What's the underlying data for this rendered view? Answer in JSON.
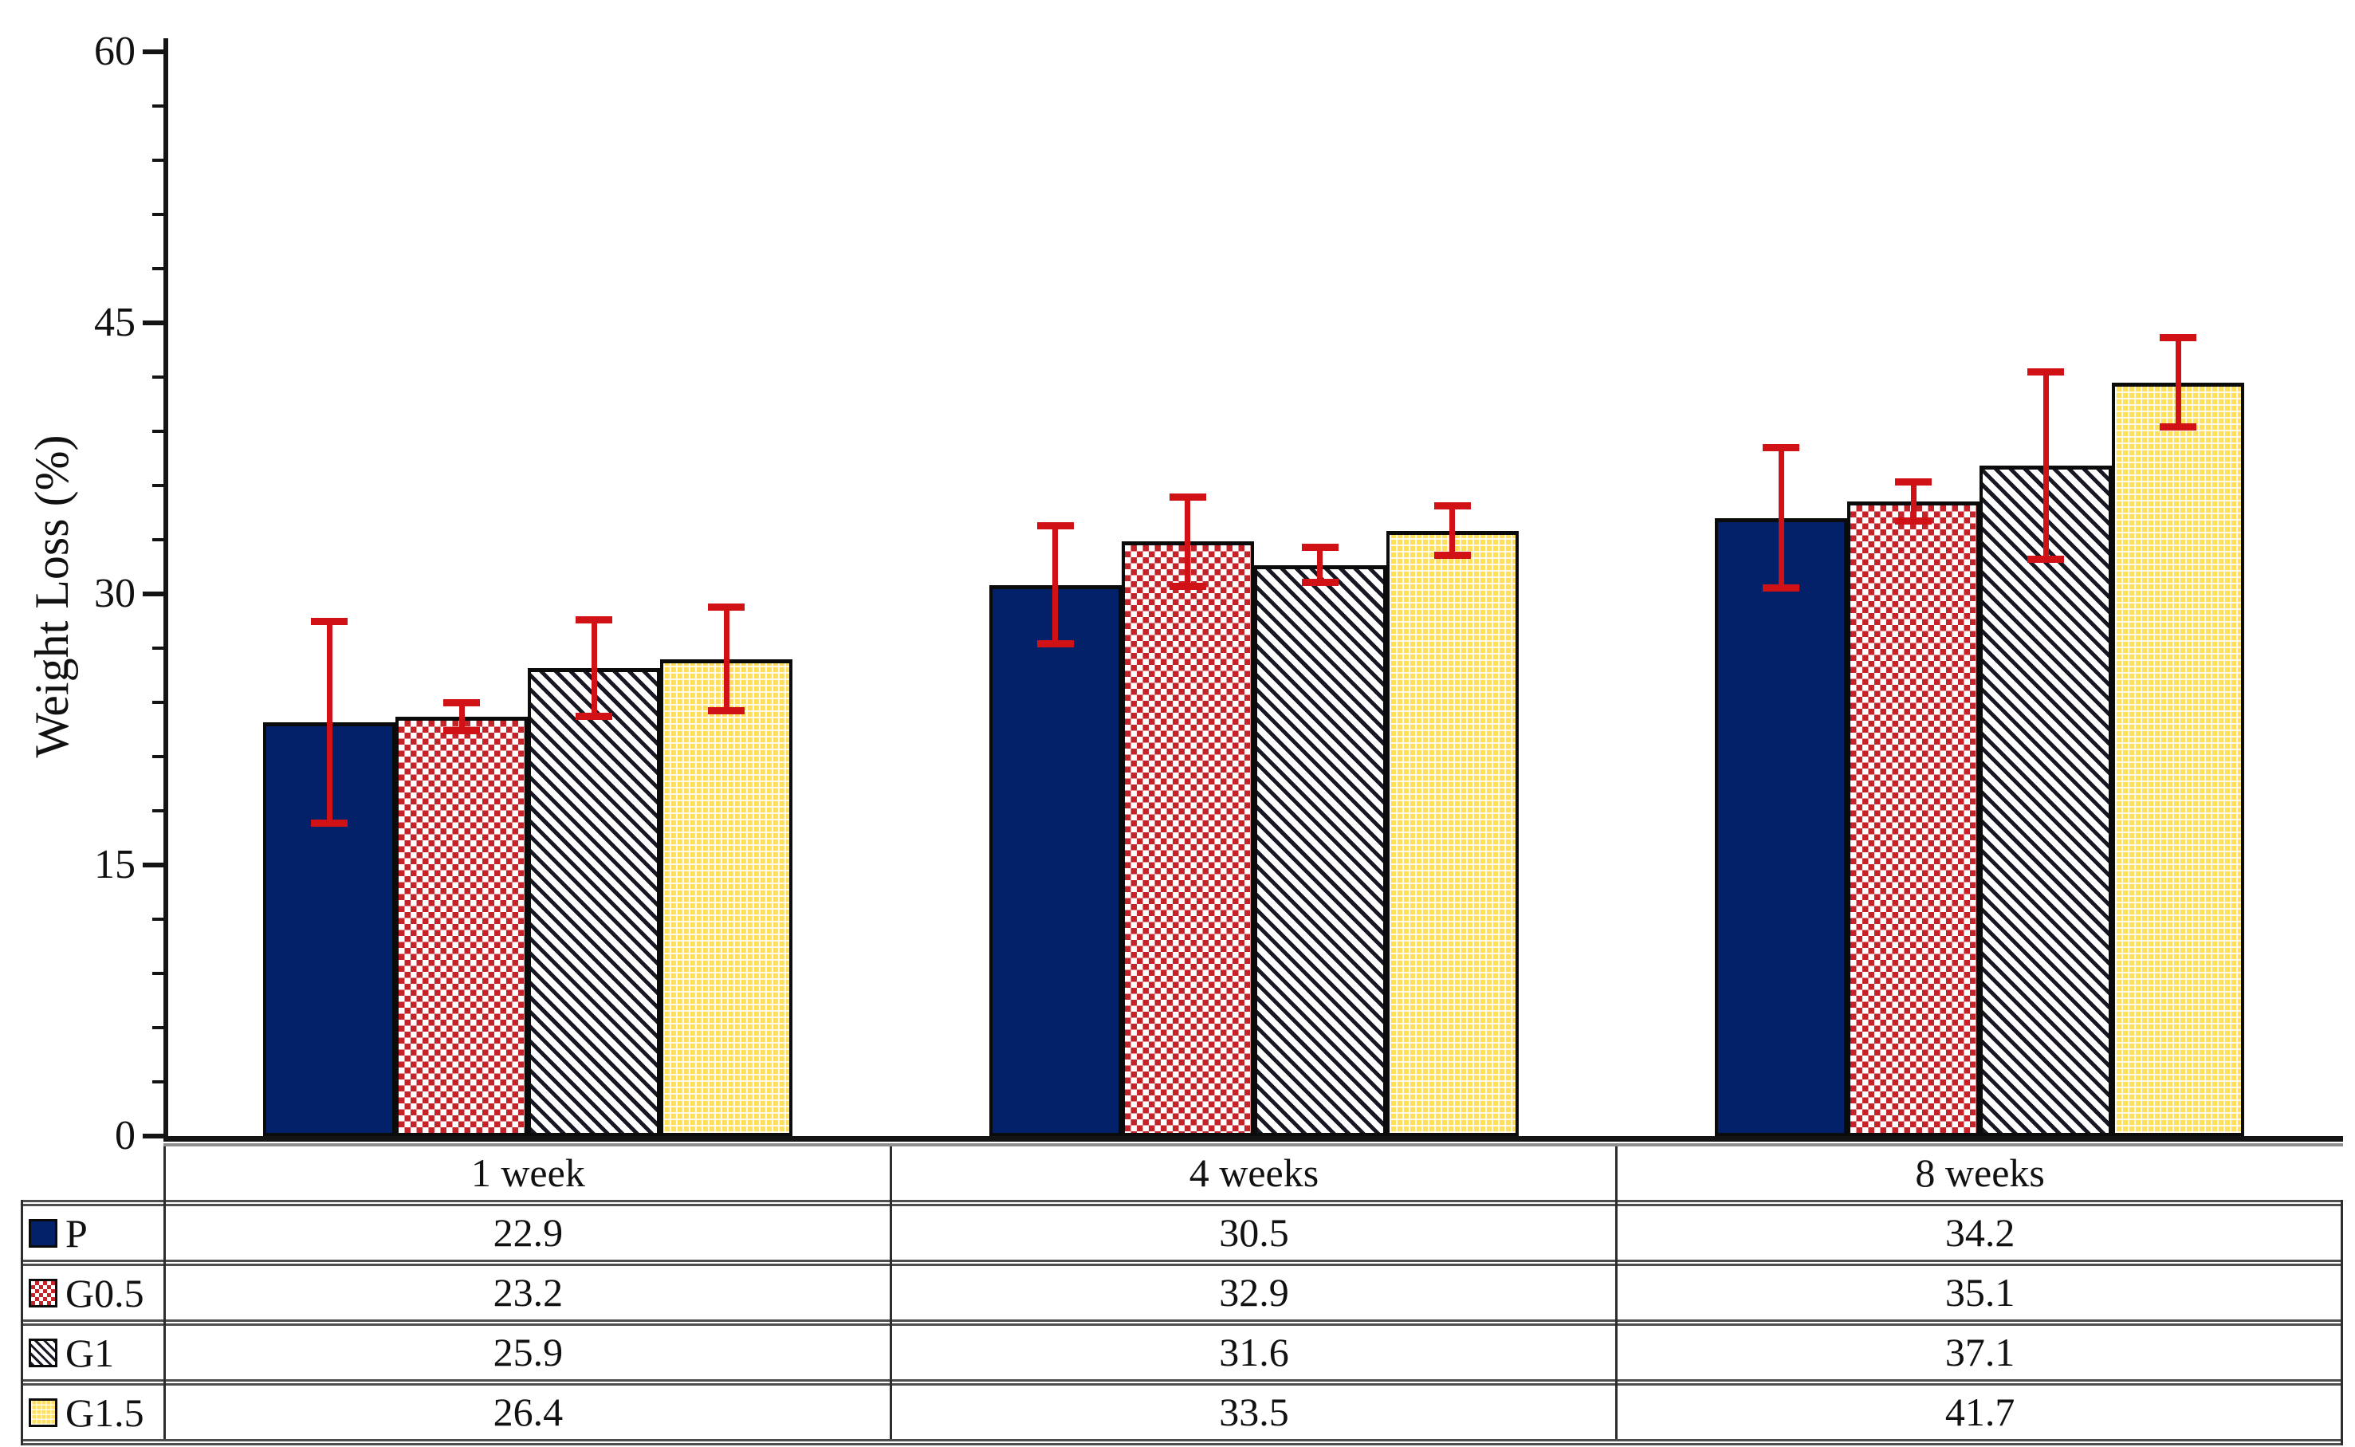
{
  "chart_data": {
    "type": "bar",
    "title": "",
    "xlabel": "",
    "ylabel": "Weight Loss (%)",
    "ylim": [
      0,
      60
    ],
    "yticks_major": [
      0,
      15,
      30,
      45,
      60
    ],
    "ytick_minor_step": 3,
    "grid": false,
    "legend_position": "table-left-column",
    "categories": [
      "1 week",
      "4 weeks",
      "8 weeks"
    ],
    "series": [
      {
        "name": "P",
        "pattern": "solid-navy",
        "values": [
          22.9,
          30.5,
          34.2
        ],
        "errors": [
          5.6,
          3.3,
          3.9
        ]
      },
      {
        "name": "G0.5",
        "pattern": "red-checker",
        "values": [
          23.2,
          32.9,
          35.1
        ],
        "errors": [
          0.8,
          2.5,
          1.1
        ]
      },
      {
        "name": "G1",
        "pattern": "black-hatch",
        "values": [
          25.9,
          31.6,
          37.1
        ],
        "errors": [
          2.7,
          1.0,
          5.2
        ]
      },
      {
        "name": "G1.5",
        "pattern": "yellow-grid",
        "values": [
          26.4,
          33.5,
          41.7
        ],
        "errors": [
          2.9,
          1.4,
          2.5
        ]
      }
    ],
    "colors": {
      "bar_navy": "#032169",
      "checker_red": "#c5232a",
      "hatch_dark": "#181824",
      "bar_yellow": "#ffdf5e",
      "error_bar": "#d01217",
      "axis": "#141414",
      "table_border": "#4e4e4e"
    }
  },
  "table": {
    "legend_column": [
      "P",
      "G0.5",
      "G1",
      "G1.5"
    ],
    "columns": [
      "1 week",
      "4 weeks",
      "8 weeks"
    ],
    "cells": [
      [
        "22.9",
        "30.5",
        "34.2"
      ],
      [
        "23.2",
        "32.9",
        "35.1"
      ],
      [
        "25.9",
        "31.6",
        "37.1"
      ],
      [
        "26.4",
        "33.5",
        "41.7"
      ]
    ]
  }
}
